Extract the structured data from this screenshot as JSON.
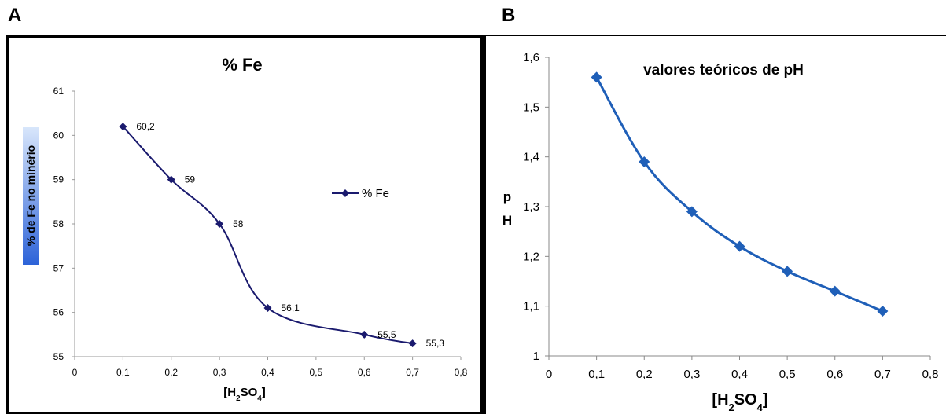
{
  "panel_a_letter": "A",
  "panel_b_letter": "B",
  "chart_data": [
    {
      "type": "line",
      "title": "% Fe",
      "xlabel": "[H2SO4]",
      "xlabel_parts": {
        "pre": "[H",
        "sub1": "2",
        "mid": "SO",
        "sub2": "4",
        "post": "]"
      },
      "ylabel": "% de Fe no minério",
      "xlim": [
        0,
        0.8
      ],
      "ylim": [
        55,
        61
      ],
      "x_ticks": [
        "0",
        "0,1",
        "0,2",
        "0,3",
        "0,4",
        "0,5",
        "0,6",
        "0,7",
        "0,8"
      ],
      "y_ticks": [
        "55",
        "56",
        "57",
        "58",
        "59",
        "60",
        "61"
      ],
      "series": [
        {
          "name": "% Fe",
          "color": "#1a1a6e",
          "x": [
            0.1,
            0.2,
            0.3,
            0.4,
            0.6,
            0.7
          ],
          "y": [
            60.2,
            59,
            58,
            56.1,
            55.5,
            55.3
          ],
          "labels": [
            "60,2",
            "59",
            "58",
            "56,1",
            "55,5",
            "55,3"
          ]
        }
      ],
      "legend": "right",
      "grid": false
    },
    {
      "type": "line",
      "title": "valores teóricos de pH",
      "xlabel": "[H2SO4]",
      "xlabel_parts": {
        "pre": "[H",
        "sub1": "2",
        "mid": "SO",
        "sub2": "4",
        "post": "]"
      },
      "ylabel": "pH",
      "ylabel_parts": [
        "p",
        "H"
      ],
      "xlim": [
        0,
        0.8
      ],
      "ylim": [
        1,
        1.6
      ],
      "x_ticks": [
        "0",
        "0,1",
        "0,2",
        "0,3",
        "0,4",
        "0,5",
        "0,6",
        "0,7",
        "0,8"
      ],
      "y_ticks": [
        "1",
        "1,1",
        "1,2",
        "1,3",
        "1,4",
        "1,5",
        "1,6"
      ],
      "series": [
        {
          "color": "#1f5fb8",
          "x": [
            0.1,
            0.2,
            0.3,
            0.4,
            0.5,
            0.6,
            0.7
          ],
          "y": [
            1.56,
            1.39,
            1.29,
            1.22,
            1.17,
            1.13,
            1.09
          ]
        }
      ],
      "grid": false
    }
  ]
}
